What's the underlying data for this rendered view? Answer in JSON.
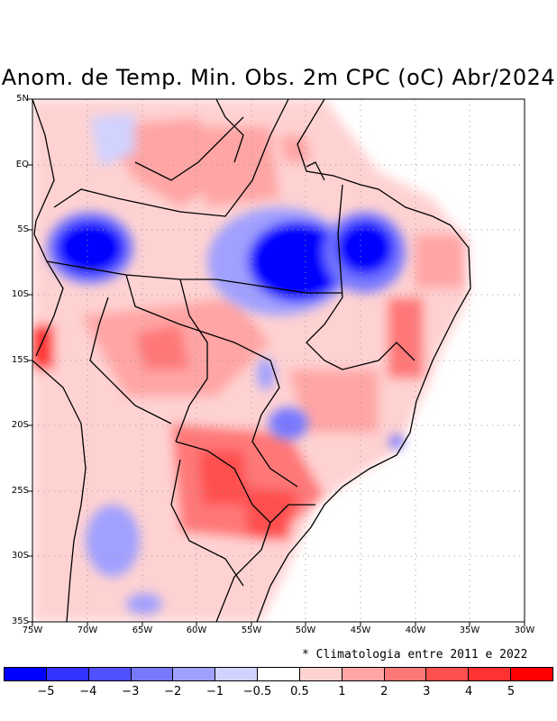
{
  "title": "Anom. de Temp. Min. Obs. 2m CPC (oC) Abr/2024",
  "note": "* Climatologia entre 2011 e 2022",
  "x_ticks": [
    "75W",
    "70W",
    "65W",
    "60W",
    "55W",
    "50W",
    "45W",
    "40W",
    "35W",
    "30W"
  ],
  "y_ticks": [
    "5N",
    "EQ",
    "5S",
    "10S",
    "15S",
    "20S",
    "25S",
    "30S",
    "35S"
  ],
  "colorbar": {
    "colors": [
      "#0000ff",
      "#3232ff",
      "#5050ff",
      "#7878ff",
      "#a0a0ff",
      "#d2d2ff",
      "#ffffff",
      "#ffd2d2",
      "#ffa5a5",
      "#ff7878",
      "#ff5050",
      "#ff3232",
      "#ff0000"
    ],
    "labels": [
      "−5",
      "−4",
      "−3",
      "−2",
      "−1",
      "−0.5",
      "0.5",
      "1",
      "2",
      "3",
      "4",
      "5"
    ]
  },
  "map_extent": {
    "lon_min": -75,
    "lon_max": -30,
    "lat_min": -35,
    "lat_max": 5
  },
  "anomaly_regions": [
    {
      "name": "amazon-west-cold",
      "color": "#0000ff"
    },
    {
      "name": "para-cold",
      "color": "#0000ff"
    },
    {
      "name": "maranhao-cold",
      "color": "#0000ff"
    },
    {
      "name": "south-warm",
      "color": "#ff5050"
    }
  ]
}
